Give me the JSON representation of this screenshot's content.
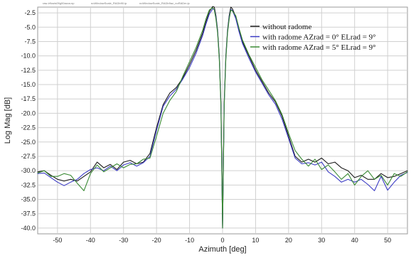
{
  "chart_data": {
    "type": "line",
    "header_files": [
      "raw-ir9azis09g00azza.np",
      "noWindowScale_RADb90.ip",
      "noWindowScale_RADb9az_noRADm.ip"
    ],
    "title": "",
    "xlabel": "Azimuth [deg]",
    "ylabel": "Log Mag [dB]",
    "xlim": [
      -56,
      56
    ],
    "ylim": [
      -41,
      -1.5
    ],
    "xticks": [
      -50,
      -40,
      -30,
      -20,
      -10,
      0,
      10,
      20,
      30,
      40,
      50
    ],
    "yticks": [
      -2.5,
      -5.0,
      -7.5,
      -10.0,
      -12.5,
      -15.0,
      -17.5,
      -20.0,
      -22.5,
      -25.0,
      -27.5,
      -30.0,
      -32.5,
      -35.0,
      -37.5,
      -40.0
    ],
    "xtick_labels": [
      "-50",
      "-40",
      "-30",
      "-20",
      "-10",
      "0",
      "10",
      "20",
      "30",
      "40",
      "50"
    ],
    "ytick_labels": [
      "-2.5",
      "-5.0",
      "-7.5",
      "-10.0",
      "-12.5",
      "-15.0",
      "-17.5",
      "-20.0",
      "-22.5",
      "-25.0",
      "-27.5",
      "-30.0",
      "-32.5",
      "-35.0",
      "-37.5",
      "-40.0"
    ],
    "grid": true,
    "legend_position": "top-right",
    "series": [
      {
        "name": "without radome",
        "color": "#1a1a1a",
        "x": [
          -56,
          -54,
          -52,
          -50,
          -48,
          -46,
          -44,
          -42,
          -40,
          -38,
          -36,
          -34,
          -32,
          -30,
          -28,
          -26,
          -24,
          -22,
          -20,
          -18,
          -16,
          -14,
          -12,
          -10,
          -8,
          -6,
          -5,
          -4,
          -3,
          -2.5,
          -2,
          -1.5,
          -1,
          -0.5,
          0,
          0.5,
          1,
          1.5,
          2,
          2.5,
          3,
          4,
          5,
          6,
          8,
          10,
          12,
          14,
          16,
          18,
          20,
          22,
          24,
          26,
          28,
          30,
          32,
          34,
          36,
          38,
          40,
          42,
          44,
          46,
          48,
          50,
          52,
          54,
          56
        ],
        "y": [
          -30.2,
          -30.0,
          -30.8,
          -31.5,
          -31.8,
          -31.5,
          -31.8,
          -31.0,
          -30.2,
          -28.5,
          -29.5,
          -28.9,
          -29.8,
          -28.5,
          -28.2,
          -28.8,
          -28.5,
          -27.0,
          -22.5,
          -18.5,
          -16.5,
          -15.5,
          -13.8,
          -11.5,
          -9.0,
          -6.0,
          -4.0,
          -2.3,
          -1.4,
          -1.5,
          -3.0,
          -5.5,
          -10.0,
          -18.0,
          -40.0,
          -18.0,
          -10.0,
          -5.5,
          -3.0,
          -1.5,
          -1.8,
          -3.2,
          -5.5,
          -7.5,
          -10.0,
          -12.5,
          -14.5,
          -16.5,
          -18.0,
          -20.5,
          -24.0,
          -27.5,
          -28.5,
          -28.0,
          -28.5,
          -27.8,
          -28.8,
          -28.5,
          -29.5,
          -30.0,
          -31.2,
          -30.8,
          -31.5,
          -31.5,
          -30.5,
          -31.2,
          -31.0,
          -30.5,
          -30.0
        ]
      },
      {
        "name": "with radome AZrad = 0° ELrad = 9°",
        "color": "#3b3bc4",
        "x": [
          -56,
          -54,
          -52,
          -50,
          -48,
          -46,
          -44,
          -42,
          -40,
          -38,
          -36,
          -34,
          -32,
          -30,
          -28,
          -26,
          -24,
          -22,
          -20,
          -18,
          -16,
          -14,
          -12,
          -10,
          -8,
          -6,
          -5,
          -4,
          -3,
          -2.5,
          -2,
          -1.5,
          -1,
          -0.5,
          0,
          0.5,
          1,
          1.5,
          2,
          2.5,
          3,
          4,
          5,
          6,
          8,
          10,
          12,
          14,
          16,
          18,
          20,
          22,
          24,
          26,
          28,
          30,
          32,
          34,
          36,
          38,
          40,
          42,
          44,
          46,
          48,
          50,
          52,
          54,
          56
        ],
        "y": [
          -30.5,
          -30.4,
          -31.2,
          -32.0,
          -32.6,
          -32.0,
          -31.5,
          -30.5,
          -29.8,
          -29.5,
          -30.0,
          -29.2,
          -30.0,
          -29.0,
          -28.6,
          -29.2,
          -28.6,
          -27.5,
          -23.0,
          -18.8,
          -17.0,
          -15.8,
          -14.0,
          -12.0,
          -9.5,
          -6.4,
          -4.4,
          -2.7,
          -1.8,
          -1.9,
          -3.3,
          -5.8,
          -10.4,
          -18.5,
          -40.0,
          -18.5,
          -10.4,
          -5.8,
          -3.3,
          -1.9,
          -2.1,
          -3.5,
          -5.8,
          -7.8,
          -10.4,
          -12.8,
          -14.8,
          -16.8,
          -18.4,
          -21.0,
          -24.4,
          -27.8,
          -28.8,
          -28.6,
          -29.0,
          -28.5,
          -30.2,
          -31.0,
          -32.0,
          -31.5,
          -32.0,
          -31.5,
          -32.4,
          -33.5,
          -31.0,
          -33.4,
          -32.0,
          -30.8,
          -30.3
        ]
      },
      {
        "name": "with radome AZrad = 5° ELrad = 9°",
        "color": "#3a8a34",
        "x": [
          -56,
          -54,
          -52,
          -50,
          -48,
          -46,
          -44,
          -42,
          -40,
          -38,
          -36,
          -34,
          -32,
          -30,
          -28,
          -26,
          -24,
          -22,
          -20,
          -18,
          -16,
          -14,
          -12,
          -10,
          -8,
          -6,
          -5,
          -4,
          -3,
          -2.5,
          -2,
          -1.5,
          -1,
          -0.5,
          0,
          0.5,
          1,
          1.5,
          2,
          2.5,
          3,
          4,
          5,
          6,
          8,
          10,
          12,
          14,
          16,
          18,
          20,
          22,
          24,
          26,
          28,
          30,
          32,
          34,
          36,
          38,
          40,
          42,
          44,
          46,
          48,
          50,
          52,
          54,
          56
        ],
        "y": [
          -30.4,
          -30.0,
          -31.0,
          -31.0,
          -30.5,
          -30.8,
          -32.2,
          -33.5,
          -30.5,
          -29.0,
          -30.2,
          -29.5,
          -28.8,
          -29.5,
          -28.9,
          -28.8,
          -28.0,
          -27.8,
          -24.0,
          -20.0,
          -17.8,
          -16.2,
          -13.5,
          -11.0,
          -8.5,
          -5.5,
          -3.5,
          -2.0,
          -1.6,
          -2.0,
          -3.6,
          -6.0,
          -10.6,
          -18.8,
          -40.0,
          -18.8,
          -10.6,
          -6.0,
          -3.6,
          -2.0,
          -2.2,
          -3.0,
          -5.2,
          -7.2,
          -9.8,
          -12.0,
          -14.2,
          -16.0,
          -17.8,
          -20.2,
          -23.5,
          -26.5,
          -28.0,
          -29.2,
          -28.0,
          -29.8,
          -29.0,
          -30.2,
          -31.5,
          -30.5,
          -32.5,
          -31.0,
          -30.0,
          -31.5,
          -30.8,
          -32.5,
          -30.5,
          -31.0,
          -30.2
        ]
      }
    ]
  }
}
